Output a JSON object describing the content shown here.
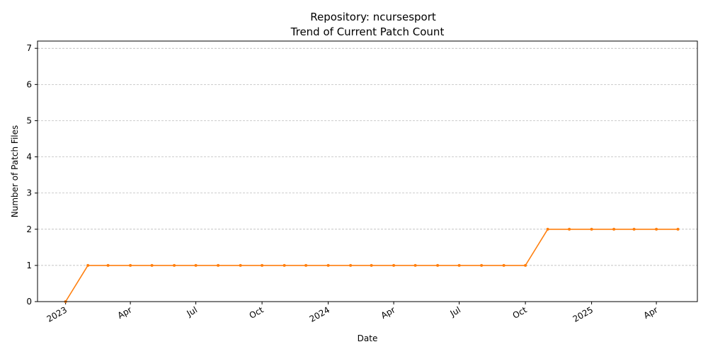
{
  "chart_data": {
    "type": "line",
    "title_line1": "Repository: ncursesport",
    "title_line2": "Trend of Current Patch Count",
    "xlabel": "Date",
    "ylabel": "Number of Patch Files",
    "xlim": [
      "2022-11-23",
      "2025-05-28"
    ],
    "ylim": [
      0,
      7.2
    ],
    "yticks": [
      0,
      1,
      2,
      3,
      4,
      5,
      6,
      7
    ],
    "xticks": [
      {
        "date": "2023-01-01",
        "label": "2023"
      },
      {
        "date": "2023-04-01",
        "label": "Apr"
      },
      {
        "date": "2023-07-01",
        "label": "Jul"
      },
      {
        "date": "2023-10-01",
        "label": "Oct"
      },
      {
        "date": "2024-01-01",
        "label": "2024"
      },
      {
        "date": "2024-04-01",
        "label": "Apr"
      },
      {
        "date": "2024-07-01",
        "label": "Jul"
      },
      {
        "date": "2024-10-01",
        "label": "Oct"
      },
      {
        "date": "2025-01-01",
        "label": "2025"
      },
      {
        "date": "2025-04-01",
        "label": "Apr"
      }
    ],
    "grid": "y",
    "series": [
      {
        "color": "#ff7f0e",
        "x": [
          "2023-01-01",
          "2023-02-01",
          "2023-03-01",
          "2023-04-01",
          "2023-05-01",
          "2023-06-01",
          "2023-07-01",
          "2023-08-01",
          "2023-09-01",
          "2023-10-01",
          "2023-11-01",
          "2023-12-01",
          "2024-01-01",
          "2024-02-01",
          "2024-03-01",
          "2024-04-01",
          "2024-05-01",
          "2024-06-01",
          "2024-07-01",
          "2024-08-01",
          "2024-09-01",
          "2024-10-01",
          "2024-11-01",
          "2024-12-01",
          "2025-01-01",
          "2025-02-01",
          "2025-03-01",
          "2025-04-01",
          "2025-05-01"
        ],
        "y": [
          0,
          1,
          1,
          1,
          1,
          1,
          1,
          1,
          1,
          1,
          1,
          1,
          1,
          1,
          1,
          1,
          1,
          1,
          1,
          1,
          1,
          1,
          2,
          2,
          2,
          2,
          2,
          2,
          2
        ]
      }
    ]
  }
}
